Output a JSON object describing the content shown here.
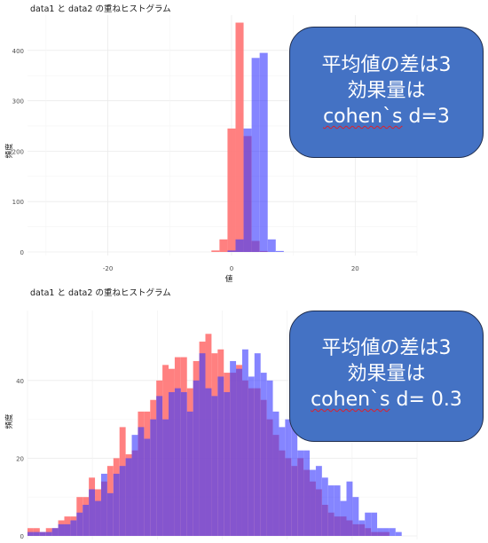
{
  "colors": {
    "data1": "#ff7a7a",
    "data2": "#7a7aff",
    "overlap": "#7a45c8",
    "callout_bg": "#4472c4",
    "grid": "#ebebeb"
  },
  "callouts": [
    {
      "line1": "平均値の差は3",
      "line2": "効果量は",
      "line3_word": "cohen`s",
      "line3_rest": " d=3"
    },
    {
      "line1": "平均値の差は3",
      "line2": "効果量は",
      "line3_word": "cohen`s",
      "line3_rest": " d= 0.3"
    }
  ],
  "chart_data": [
    {
      "type": "bar",
      "title": "data1 と data2 の重ねヒストグラム",
      "xlabel": "値",
      "ylabel": "頻度",
      "xlim": [
        -33,
        30
      ],
      "ylim": [
        0,
        470
      ],
      "xticks": [
        -20,
        0,
        20
      ],
      "yticks": [
        0,
        100,
        200,
        300,
        400
      ],
      "grid": true,
      "legend": "none",
      "bin_width": 1.3,
      "series": [
        {
          "name": "data1",
          "bins": [
            {
              "x0": -3.25,
              "count": 3
            },
            {
              "x0": -1.95,
              "count": 25
            },
            {
              "x0": -0.65,
              "count": 245
            },
            {
              "x0": 0.65,
              "count": 455
            },
            {
              "x0": 1.95,
              "count": 230
            },
            {
              "x0": 3.25,
              "count": 22
            },
            {
              "x0": 4.55,
              "count": 2
            }
          ]
        },
        {
          "name": "data2",
          "bins": [
            {
              "x0": -0.65,
              "count": 3
            },
            {
              "x0": 0.65,
              "count": 25
            },
            {
              "x0": 1.95,
              "count": 245
            },
            {
              "x0": 3.25,
              "count": 385
            },
            {
              "x0": 4.55,
              "count": 395
            },
            {
              "x0": 5.85,
              "count": 25
            },
            {
              "x0": 7.15,
              "count": 2
            }
          ]
        }
      ]
    },
    {
      "type": "bar",
      "title": "data1 と data2 の重ねヒストグラム",
      "xlabel": "",
      "ylabel": "頻度",
      "xlim": [
        -3.0,
        3.35
      ],
      "ylim": [
        0,
        58
      ],
      "yticks": [
        0,
        20,
        40
      ],
      "grid": true,
      "legend": "none",
      "bin_width": 0.1,
      "series": [
        {
          "name": "data1",
          "bins": [
            {
              "x0": -3.0,
              "count": 2
            },
            {
              "x0": -2.9,
              "count": 2
            },
            {
              "x0": -2.8,
              "count": 1
            },
            {
              "x0": -2.7,
              "count": 2
            },
            {
              "x0": -2.6,
              "count": 2
            },
            {
              "x0": -2.5,
              "count": 4
            },
            {
              "x0": -2.4,
              "count": 5
            },
            {
              "x0": -2.3,
              "count": 5
            },
            {
              "x0": -2.2,
              "count": 10
            },
            {
              "x0": -2.1,
              "count": 10
            },
            {
              "x0": -2.0,
              "count": 15
            },
            {
              "x0": -1.9,
              "count": 12
            },
            {
              "x0": -1.8,
              "count": 14
            },
            {
              "x0": -1.7,
              "count": 18
            },
            {
              "x0": -1.6,
              "count": 20
            },
            {
              "x0": -1.5,
              "count": 28
            },
            {
              "x0": -1.4,
              "count": 21
            },
            {
              "x0": -1.3,
              "count": 22
            },
            {
              "x0": -1.2,
              "count": 32
            },
            {
              "x0": -1.1,
              "count": 32
            },
            {
              "x0": -1.0,
              "count": 35
            },
            {
              "x0": -0.9,
              "count": 40
            },
            {
              "x0": -0.8,
              "count": 44
            },
            {
              "x0": -0.7,
              "count": 43
            },
            {
              "x0": -0.6,
              "count": 46
            },
            {
              "x0": -0.5,
              "count": 46
            },
            {
              "x0": -0.4,
              "count": 38
            },
            {
              "x0": -0.3,
              "count": 45
            },
            {
              "x0": -0.2,
              "count": 50
            },
            {
              "x0": -0.1,
              "count": 52
            },
            {
              "x0": 0.0,
              "count": 47
            },
            {
              "x0": 0.1,
              "count": 48
            },
            {
              "x0": 0.2,
              "count": 42
            },
            {
              "x0": 0.3,
              "count": 42
            },
            {
              "x0": 0.4,
              "count": 44
            },
            {
              "x0": 0.5,
              "count": 40
            },
            {
              "x0": 0.6,
              "count": 38
            },
            {
              "x0": 0.7,
              "count": 38
            },
            {
              "x0": 0.8,
              "count": 35
            },
            {
              "x0": 0.9,
              "count": 30
            },
            {
              "x0": 1.0,
              "count": 26
            },
            {
              "x0": 1.1,
              "count": 22
            },
            {
              "x0": 1.2,
              "count": 20
            },
            {
              "x0": 1.3,
              "count": 18
            },
            {
              "x0": 1.4,
              "count": 20
            },
            {
              "x0": 1.5,
              "count": 17
            },
            {
              "x0": 1.6,
              "count": 14
            },
            {
              "x0": 1.7,
              "count": 12
            },
            {
              "x0": 1.8,
              "count": 8
            },
            {
              "x0": 1.9,
              "count": 6
            },
            {
              "x0": 2.0,
              "count": 5
            },
            {
              "x0": 2.1,
              "count": 5
            },
            {
              "x0": 2.2,
              "count": 4
            },
            {
              "x0": 2.3,
              "count": 3
            },
            {
              "x0": 2.4,
              "count": 3
            },
            {
              "x0": 2.5,
              "count": 2
            },
            {
              "x0": 2.6,
              "count": 1
            },
            {
              "x0": 2.7,
              "count": 1
            },
            {
              "x0": 2.8,
              "count": 1
            },
            {
              "x0": 2.9,
              "count": 0
            }
          ]
        },
        {
          "name": "data2",
          "bins": [
            {
              "x0": -3.0,
              "count": 1
            },
            {
              "x0": -2.9,
              "count": 1
            },
            {
              "x0": -2.8,
              "count": 1
            },
            {
              "x0": -2.7,
              "count": 1
            },
            {
              "x0": -2.6,
              "count": 2
            },
            {
              "x0": -2.5,
              "count": 3
            },
            {
              "x0": -2.4,
              "count": 3
            },
            {
              "x0": -2.3,
              "count": 4
            },
            {
              "x0": -2.2,
              "count": 6
            },
            {
              "x0": -2.1,
              "count": 8
            },
            {
              "x0": -2.0,
              "count": 12
            },
            {
              "x0": -1.9,
              "count": 9
            },
            {
              "x0": -1.8,
              "count": 16
            },
            {
              "x0": -1.7,
              "count": 11
            },
            {
              "x0": -1.6,
              "count": 16
            },
            {
              "x0": -1.5,
              "count": 18
            },
            {
              "x0": -1.4,
              "count": 20
            },
            {
              "x0": -1.3,
              "count": 26
            },
            {
              "x0": -1.2,
              "count": 28
            },
            {
              "x0": -1.1,
              "count": 25
            },
            {
              "x0": -1.0,
              "count": 30
            },
            {
              "x0": -0.9,
              "count": 36
            },
            {
              "x0": -0.8,
              "count": 30
            },
            {
              "x0": -0.7,
              "count": 37
            },
            {
              "x0": -0.6,
              "count": 38
            },
            {
              "x0": -0.5,
              "count": 37
            },
            {
              "x0": -0.4,
              "count": 32
            },
            {
              "x0": -0.3,
              "count": 40
            },
            {
              "x0": -0.2,
              "count": 47
            },
            {
              "x0": -0.1,
              "count": 38
            },
            {
              "x0": 0.0,
              "count": 36
            },
            {
              "x0": 0.1,
              "count": 41
            },
            {
              "x0": 0.2,
              "count": 37
            },
            {
              "x0": 0.3,
              "count": 45
            },
            {
              "x0": 0.4,
              "count": 43
            },
            {
              "x0": 0.5,
              "count": 48
            },
            {
              "x0": 0.6,
              "count": 41
            },
            {
              "x0": 0.7,
              "count": 47
            },
            {
              "x0": 0.8,
              "count": 42
            },
            {
              "x0": 0.9,
              "count": 40
            },
            {
              "x0": 1.0,
              "count": 32
            },
            {
              "x0": 1.1,
              "count": 28
            },
            {
              "x0": 1.2,
              "count": 30
            },
            {
              "x0": 1.3,
              "count": 28
            },
            {
              "x0": 1.4,
              "count": 22
            },
            {
              "x0": 1.5,
              "count": 22
            },
            {
              "x0": 1.6,
              "count": 17
            },
            {
              "x0": 1.7,
              "count": 18
            },
            {
              "x0": 1.8,
              "count": 15
            },
            {
              "x0": 1.9,
              "count": 13
            },
            {
              "x0": 2.0,
              "count": 13
            },
            {
              "x0": 2.1,
              "count": 9
            },
            {
              "x0": 2.2,
              "count": 14
            },
            {
              "x0": 2.3,
              "count": 10
            },
            {
              "x0": 2.4,
              "count": 4
            },
            {
              "x0": 2.5,
              "count": 6
            },
            {
              "x0": 2.6,
              "count": 6
            },
            {
              "x0": 2.7,
              "count": 2
            },
            {
              "x0": 2.8,
              "count": 2
            },
            {
              "x0": 2.9,
              "count": 2
            },
            {
              "x0": 3.0,
              "count": 1
            },
            {
              "x0": 3.1,
              "count": 0
            },
            {
              "x0": 3.2,
              "count": 0
            }
          ]
        }
      ]
    }
  ]
}
